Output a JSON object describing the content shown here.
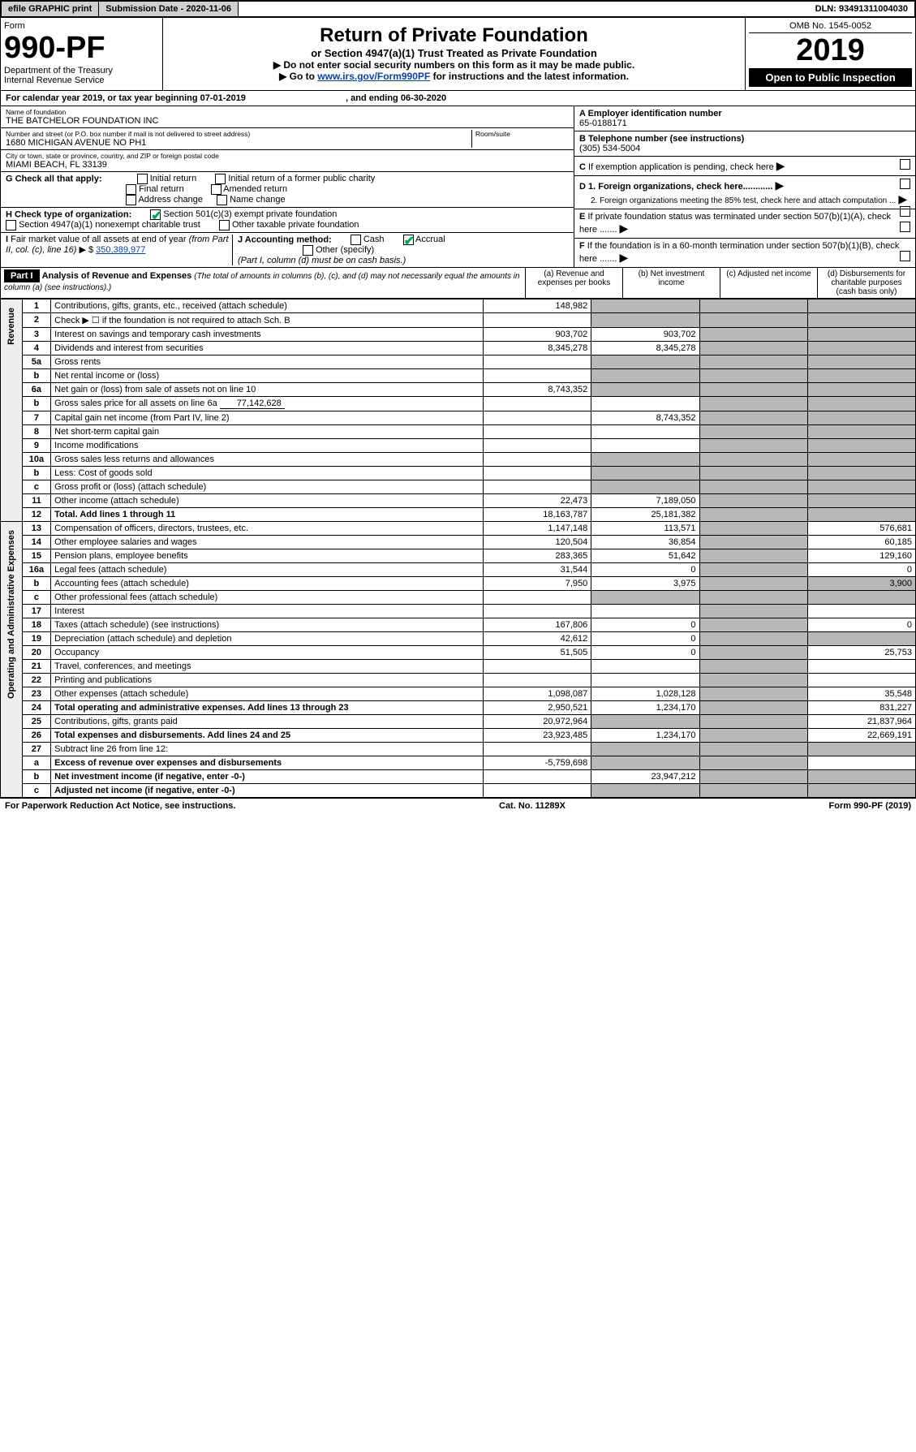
{
  "topbar": {
    "efile": "efile GRAPHIC print",
    "submission_label": "Submission Date - 2020-11-06",
    "dln": "DLN: 93491311004030"
  },
  "header": {
    "form_label": "Form",
    "form_no": "990-PF",
    "dept": "Department of the Treasury",
    "irs": "Internal Revenue Service",
    "title": "Return of Private Foundation",
    "subtitle": "or Section 4947(a)(1) Trust Treated as Private Foundation",
    "instr1": "▶ Do not enter social security numbers on this form as it may be made public.",
    "instr2_pre": "▶ Go to ",
    "instr2_link": "www.irs.gov/Form990PF",
    "instr2_post": " for instructions and the latest information.",
    "omb": "OMB No. 1545-0052",
    "year": "2019",
    "open": "Open to Public Inspection"
  },
  "calyear": {
    "label": "For calendar year 2019, or tax year beginning ",
    "begin": "07-01-2019",
    "mid": " , and ending ",
    "end": "06-30-2020"
  },
  "left": {
    "name_lbl": "Name of foundation",
    "name": "THE BATCHELOR FOUNDATION INC",
    "addr_lbl": "Number and street (or P.O. box number if mail is not delivered to street address)",
    "room_lbl": "Room/suite",
    "addr": "1680 MICHIGAN AVENUE NO PH1",
    "city_lbl": "City or town, state or province, country, and ZIP or foreign postal code",
    "city": "MIAMI BEACH, FL  33139",
    "g_label": "G Check all that apply:",
    "g_opts": [
      "Initial return",
      "Initial return of a former public charity",
      "Final return",
      "Amended return",
      "Address change",
      "Name change"
    ],
    "h_label": "H Check type of organization:",
    "h1": "Section 501(c)(3) exempt private foundation",
    "h2": "Section 4947(a)(1) nonexempt charitable trust",
    "h3": "Other taxable private foundation",
    "i_label": "I Fair market value of all assets at end of year (from Part II, col. (c), line 16) ▶ $ ",
    "i_val": "350,389,977",
    "j_label": "J Accounting method:",
    "j1": "Cash",
    "j2": "Accrual",
    "j3": "Other (specify)",
    "j_note": "(Part I, column (d) must be on cash basis.)"
  },
  "right": {
    "a_lbl": "A Employer identification number",
    "a_val": "65-0188171",
    "b_lbl": "B Telephone number (see instructions)",
    "b_val": "(305) 534-5004",
    "c_lbl": "C If exemption application is pending, check here",
    "d1": "D 1. Foreign organizations, check here............",
    "d2": "2. Foreign organizations meeting the 85% test, check here and attach computation ...",
    "e_lbl": "E If private foundation status was terminated under section 507(b)(1)(A), check here .......",
    "f_lbl": "F If the foundation is in a 60-month termination under section 507(b)(1)(B), check here ......."
  },
  "part1": {
    "label": "Part I",
    "title": "Analysis of Revenue and Expenses",
    "note": " (The total of amounts in columns (b), (c), and (d) may not necessarily equal the amounts in column (a) (see instructions).)",
    "cols": {
      "a": "(a) Revenue and expenses per books",
      "b": "(b) Net investment income",
      "c": "(c) Adjusted net income",
      "d": "(d) Disbursements for charitable purposes (cash basis only)"
    }
  },
  "side": {
    "rev": "Revenue",
    "exp": "Operating and Administrative Expenses"
  },
  "rows": [
    {
      "n": "1",
      "d": "Contributions, gifts, grants, etc., received (attach schedule)",
      "a": "148,982",
      "b": "",
      "c": "",
      "dd": ""
    },
    {
      "n": "2",
      "d": "Check ▶ ☐ if the foundation is not required to attach Sch. B",
      "a": "",
      "b": "",
      "c": "",
      "dd": ""
    },
    {
      "n": "3",
      "d": "Interest on savings and temporary cash investments",
      "a": "903,702",
      "b": "903,702",
      "c": "",
      "dd": ""
    },
    {
      "n": "4",
      "d": "Dividends and interest from securities",
      "a": "8,345,278",
      "b": "8,345,278",
      "c": "",
      "dd": ""
    },
    {
      "n": "5a",
      "d": "Gross rents",
      "a": "",
      "b": "",
      "c": "",
      "dd": ""
    },
    {
      "n": "b",
      "d": "Net rental income or (loss)",
      "a": "",
      "b": "",
      "c": "",
      "dd": ""
    },
    {
      "n": "6a",
      "d": "Net gain or (loss) from sale of assets not on line 10",
      "a": "8,743,352",
      "b": "",
      "c": "",
      "dd": ""
    },
    {
      "n": "b",
      "d": "Gross sales price for all assets on line 6a",
      "inline": "77,142,628",
      "a": "",
      "b": "",
      "c": "",
      "dd": ""
    },
    {
      "n": "7",
      "d": "Capital gain net income (from Part IV, line 2)",
      "a": "",
      "b": "8,743,352",
      "c": "",
      "dd": ""
    },
    {
      "n": "8",
      "d": "Net short-term capital gain",
      "a": "",
      "b": "",
      "c": "",
      "dd": ""
    },
    {
      "n": "9",
      "d": "Income modifications",
      "a": "",
      "b": "",
      "c": "",
      "dd": ""
    },
    {
      "n": "10a",
      "d": "Gross sales less returns and allowances",
      "a": "",
      "b": "",
      "c": "",
      "dd": ""
    },
    {
      "n": "b",
      "d": "Less: Cost of goods sold",
      "a": "",
      "b": "",
      "c": "",
      "dd": ""
    },
    {
      "n": "c",
      "d": "Gross profit or (loss) (attach schedule)",
      "a": "",
      "b": "",
      "c": "",
      "dd": ""
    },
    {
      "n": "11",
      "d": "Other income (attach schedule)",
      "a": "22,473",
      "b": "7,189,050",
      "c": "",
      "dd": ""
    },
    {
      "n": "12",
      "d": "Total. Add lines 1 through 11",
      "a": "18,163,787",
      "b": "25,181,382",
      "c": "",
      "dd": "",
      "bold": true
    },
    {
      "n": "13",
      "d": "Compensation of officers, directors, trustees, etc.",
      "a": "1,147,148",
      "b": "113,571",
      "c": "",
      "dd": "576,681"
    },
    {
      "n": "14",
      "d": "Other employee salaries and wages",
      "a": "120,504",
      "b": "36,854",
      "c": "",
      "dd": "60,185"
    },
    {
      "n": "15",
      "d": "Pension plans, employee benefits",
      "a": "283,365",
      "b": "51,642",
      "c": "",
      "dd": "129,160"
    },
    {
      "n": "16a",
      "d": "Legal fees (attach schedule)",
      "a": "31,544",
      "b": "0",
      "c": "",
      "dd": "0"
    },
    {
      "n": "b",
      "d": "Accounting fees (attach schedule)",
      "a": "7,950",
      "b": "3,975",
      "c": "",
      "dd": "3,900"
    },
    {
      "n": "c",
      "d": "Other professional fees (attach schedule)",
      "a": "",
      "b": "",
      "c": "",
      "dd": ""
    },
    {
      "n": "17",
      "d": "Interest",
      "a": "",
      "b": "",
      "c": "",
      "dd": ""
    },
    {
      "n": "18",
      "d": "Taxes (attach schedule) (see instructions)",
      "a": "167,806",
      "b": "0",
      "c": "",
      "dd": "0"
    },
    {
      "n": "19",
      "d": "Depreciation (attach schedule) and depletion",
      "a": "42,612",
      "b": "0",
      "c": "",
      "dd": ""
    },
    {
      "n": "20",
      "d": "Occupancy",
      "a": "51,505",
      "b": "0",
      "c": "",
      "dd": "25,753"
    },
    {
      "n": "21",
      "d": "Travel, conferences, and meetings",
      "a": "",
      "b": "",
      "c": "",
      "dd": ""
    },
    {
      "n": "22",
      "d": "Printing and publications",
      "a": "",
      "b": "",
      "c": "",
      "dd": ""
    },
    {
      "n": "23",
      "d": "Other expenses (attach schedule)",
      "a": "1,098,087",
      "b": "1,028,128",
      "c": "",
      "dd": "35,548"
    },
    {
      "n": "24",
      "d": "Total operating and administrative expenses. Add lines 13 through 23",
      "a": "2,950,521",
      "b": "1,234,170",
      "c": "",
      "dd": "831,227",
      "bold": true
    },
    {
      "n": "25",
      "d": "Contributions, gifts, grants paid",
      "a": "20,972,964",
      "b": "",
      "c": "",
      "dd": "21,837,964"
    },
    {
      "n": "26",
      "d": "Total expenses and disbursements. Add lines 24 and 25",
      "a": "23,923,485",
      "b": "1,234,170",
      "c": "",
      "dd": "22,669,191",
      "bold": true
    },
    {
      "n": "27",
      "d": "Subtract line 26 from line 12:",
      "a": "",
      "b": "",
      "c": "",
      "dd": ""
    },
    {
      "n": "a",
      "d": "Excess of revenue over expenses and disbursements",
      "a": "-5,759,698",
      "b": "",
      "c": "",
      "dd": "",
      "bold": true
    },
    {
      "n": "b",
      "d": "Net investment income (if negative, enter -0-)",
      "a": "",
      "b": "23,947,212",
      "c": "",
      "dd": "",
      "bold": true
    },
    {
      "n": "c",
      "d": "Adjusted net income (if negative, enter -0-)",
      "a": "",
      "b": "",
      "c": "",
      "dd": "",
      "bold": true
    }
  ],
  "shading": {
    "col_b_shade": [
      "1",
      "2",
      "5a",
      "b",
      "6a",
      "10a",
      "27"
    ],
    "col_c_shade_all": true,
    "col_d_shade_revenue": true
  },
  "footer": {
    "left": "For Paperwork Reduction Act Notice, see instructions.",
    "mid": "Cat. No. 11289X",
    "right": "Form 990-PF (2019)"
  }
}
